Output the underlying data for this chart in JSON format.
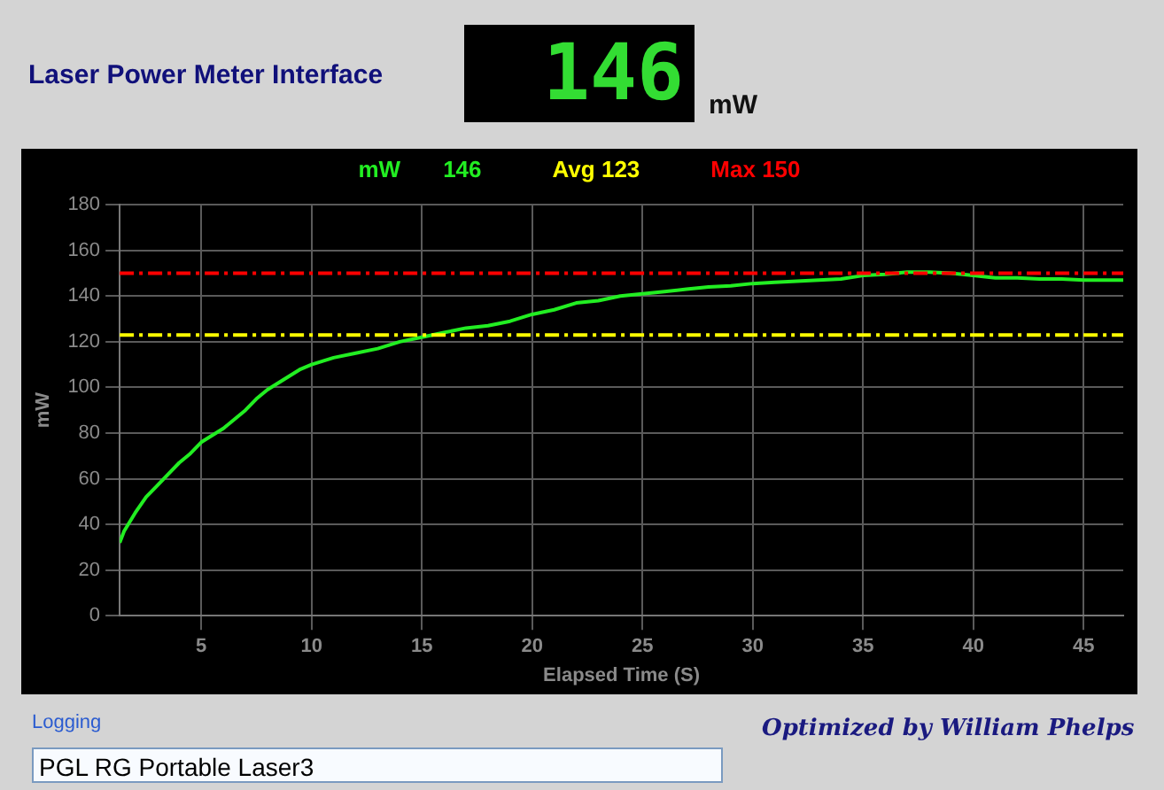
{
  "chart_data": {
    "type": "line",
    "title": "Laser Power Meter Interface",
    "xlabel": "Elapsed Time (S)",
    "ylabel": "mW",
    "xlim": [
      1.3,
      46.8
    ],
    "xticks": [
      5,
      10,
      15,
      20,
      25,
      30,
      35,
      40,
      45
    ],
    "ylim": [
      0,
      180
    ],
    "yticks": [
      0,
      20,
      40,
      60,
      80,
      100,
      120,
      140,
      160,
      180
    ],
    "grid": true,
    "legend": "top",
    "series": [
      {
        "name": "mW",
        "color": "#22ee22",
        "x": [
          1.3,
          1.5,
          2,
          2.5,
          3,
          3.5,
          4,
          4.5,
          5,
          5.5,
          6,
          6.5,
          7,
          7.5,
          8,
          8.5,
          9,
          9.5,
          10,
          11,
          12,
          13,
          14,
          15,
          16,
          17,
          18,
          19,
          20,
          21,
          22,
          23,
          24,
          25,
          26,
          27,
          28,
          29,
          30,
          31,
          32,
          33,
          34,
          35,
          36,
          37,
          38,
          39,
          40,
          41,
          42,
          43,
          44,
          45,
          46.8
        ],
        "values": [
          32,
          37,
          45,
          52,
          57,
          62,
          67,
          71,
          76,
          79,
          82,
          86,
          90,
          95,
          99,
          102,
          105,
          108,
          110,
          113,
          115,
          117,
          120,
          122,
          124,
          126,
          127,
          129,
          132,
          134,
          137,
          138,
          140,
          141,
          142,
          143,
          144,
          144.5,
          145.5,
          146,
          146.5,
          147,
          147.5,
          149,
          149.5,
          150.5,
          150.5,
          150,
          149,
          148,
          148,
          147.5,
          147.5,
          147,
          147
        ]
      }
    ],
    "ref_lines": [
      {
        "axis": "y",
        "value": 123,
        "label": "Avg 123",
        "color": "#ffff00",
        "line_style": "dashdot"
      },
      {
        "axis": "y",
        "value": 150,
        "label": "Max 150",
        "color": "#ff0000",
        "line_style": "dashdot"
      }
    ],
    "annotations": [
      "146",
      "mW",
      "146",
      "Logging",
      "PGL RG Portable Laser3",
      "Optimized by William Phelps"
    ]
  }
}
